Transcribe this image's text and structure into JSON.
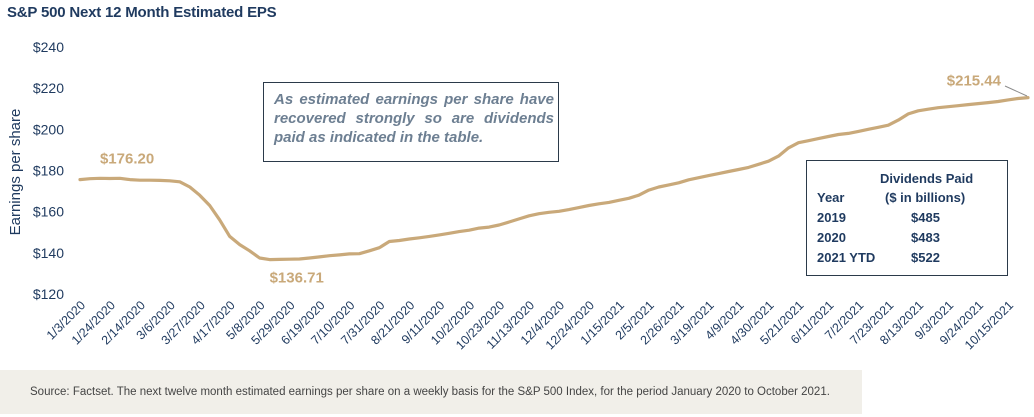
{
  "title": "S&P 500 Next 12 Month Estimated EPS",
  "callout": "As estimated earnings per share have recovered strongly so are dividends paid as indicated in the table.",
  "dividends_table": {
    "header_col1": "Year",
    "header_col2_line1": "Dividends Paid",
    "header_col2_line2": "($ in billions)",
    "rows": [
      {
        "year": "2019",
        "value": "$485"
      },
      {
        "year": "2020",
        "value": "$483"
      },
      {
        "year": "2021 YTD",
        "value": "$522"
      }
    ]
  },
  "source": "Source: Factset. The next twelve month estimated earnings per share on a weekly basis for the S&P 500 Index, for the period January 2020 to October 2021.",
  "colors": {
    "line": "#c9a97a",
    "label": "#c9a97a",
    "title": "#1f3a5f",
    "callout_text": "#6d7f92"
  },
  "chart_data": {
    "type": "line",
    "title": "S&P 500 Next 12 Month Estimated EPS",
    "ylabel": "Earnings per share",
    "xlabel": "",
    "ylim": [
      120,
      240
    ],
    "yticks": [
      "$120",
      "$140",
      "$160",
      "$180",
      "$200",
      "$220",
      "$240"
    ],
    "yticks_values": [
      120,
      140,
      160,
      180,
      200,
      220,
      240
    ],
    "grid": false,
    "x_tick_labels": [
      "1/3/2020",
      "1/24/2020",
      "2/14/2020",
      "3/6/2020",
      "3/27/2020",
      "4/17/2020",
      "5/8/2020",
      "5/29/2020",
      "6/19/2020",
      "7/10/2020",
      "7/31/2020",
      "8/21/2020",
      "9/11/2020",
      "10/2/2020",
      "10/23/2020",
      "11/13/2020",
      "12/4/2020",
      "12/24/2020",
      "1/15/2021",
      "2/5/2021",
      "2/26/2021",
      "3/19/2021",
      "4/9/2021",
      "4/30/2021",
      "5/21/2021",
      "6/11/2021",
      "7/2/2021",
      "7/23/2021",
      "8/13/2021",
      "9/3/2021",
      "9/24/2021",
      "10/15/2021"
    ],
    "x_tick_weeks": [
      0,
      3,
      6,
      9,
      12,
      15,
      18,
      21,
      24,
      27,
      30,
      33,
      36,
      39,
      42,
      45,
      48,
      51,
      54,
      57,
      60,
      63,
      66,
      69,
      72,
      75,
      78,
      81,
      84,
      87,
      90,
      93
    ],
    "series": [
      {
        "name": "",
        "week": [
          0,
          1,
          2,
          3,
          4,
          5,
          6,
          7,
          8,
          9,
          10,
          11,
          12,
          13,
          14,
          15,
          16,
          17,
          18,
          19,
          20,
          21,
          22,
          23,
          24,
          25,
          26,
          27,
          28,
          29,
          30,
          31,
          32,
          33,
          34,
          35,
          36,
          37,
          38,
          39,
          40,
          41,
          42,
          43,
          44,
          45,
          46,
          47,
          48,
          49,
          50,
          51,
          52,
          53,
          54,
          55,
          56,
          57,
          58,
          59,
          60,
          61,
          62,
          63,
          64,
          65,
          66,
          67,
          68,
          69,
          70,
          71,
          72,
          73,
          74,
          75,
          76,
          77,
          78,
          79,
          80,
          81,
          82,
          83,
          84,
          85,
          86,
          87,
          88,
          89,
          90,
          91,
          92,
          93,
          94,
          95
        ],
        "values": [
          175.6,
          176.0,
          176.2,
          176.1,
          176.2,
          175.6,
          175.3,
          175.3,
          175.2,
          175.0,
          174.5,
          172.0,
          168.0,
          163.0,
          156.0,
          148.0,
          144.0,
          141.0,
          137.5,
          136.71,
          136.8,
          136.9,
          137.0,
          137.5,
          138.0,
          138.6,
          139.0,
          139.5,
          139.6,
          141.0,
          142.5,
          145.5,
          146.0,
          146.7,
          147.3,
          148.0,
          148.7,
          149.5,
          150.3,
          151.0,
          152.0,
          152.5,
          153.5,
          155.0,
          156.5,
          158.0,
          159.0,
          159.7,
          160.2,
          161.0,
          162.0,
          163.0,
          163.8,
          164.5,
          165.5,
          166.5,
          168.0,
          170.5,
          172.0,
          173.0,
          174.0,
          175.5,
          176.5,
          177.5,
          178.5,
          179.5,
          180.5,
          181.5,
          183.0,
          184.5,
          187.0,
          191.0,
          193.5,
          194.5,
          195.5,
          196.5,
          197.5,
          198.0,
          199.0,
          200.0,
          201.0,
          202.0,
          204.5,
          207.5,
          209.0,
          209.8,
          210.5,
          211.0,
          211.5,
          212.0,
          212.5,
          213.0,
          213.5,
          214.3,
          215.0,
          215.44
        ]
      }
    ],
    "annotations": [
      {
        "text": "$176.20",
        "week": 2,
        "value": 176.2
      },
      {
        "text": "$136.71",
        "week": 19,
        "value": 136.71
      },
      {
        "text": "$215.44",
        "week": 95,
        "value": 215.44
      }
    ]
  }
}
